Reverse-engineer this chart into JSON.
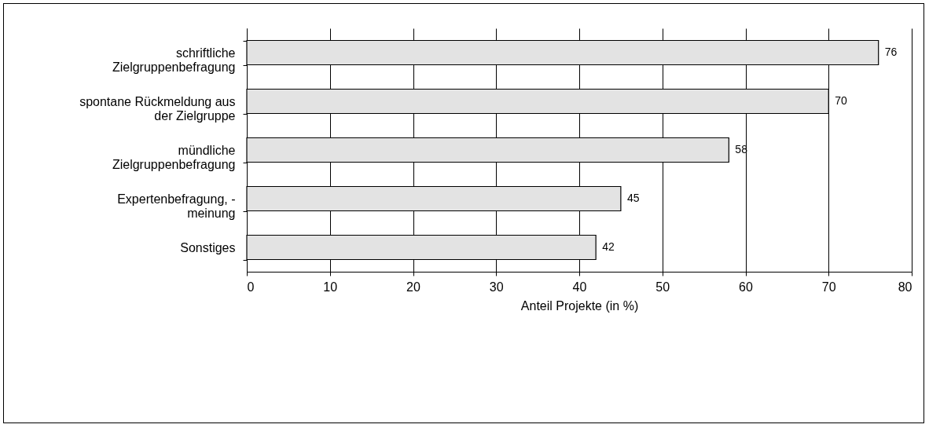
{
  "chart_data": {
    "type": "bar",
    "orientation": "horizontal",
    "categories": [
      "schriftliche\nZielgruppenbefragung",
      "spontane Rückmeldung aus\nder Zielgruppe",
      "mündliche\nZielgruppenbefragung",
      "Expertenbefragung, -\nmeinung",
      "Sonstiges"
    ],
    "values": [
      76,
      70,
      58,
      45,
      42
    ],
    "color": "#e3e3e3",
    "xlabel": "Anteil Projekte (in %)",
    "xlim": [
      0,
      80
    ],
    "xticks": [
      0,
      10,
      20,
      30,
      40,
      50,
      60,
      70,
      80
    ],
    "grid": "x",
    "data_labels": true
  }
}
